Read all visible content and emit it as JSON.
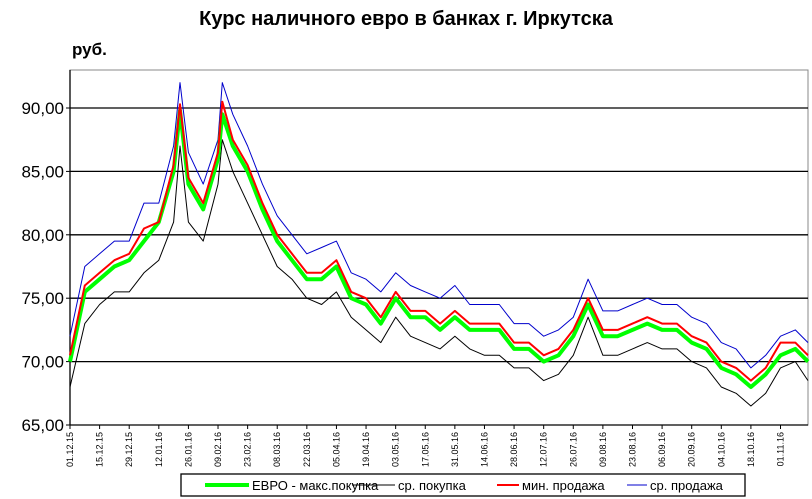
{
  "chart_data": {
    "type": "line",
    "title": "Курс наличного евро в банках г. Иркутска",
    "ylabel": "руб.",
    "ylim": [
      65,
      92.5
    ],
    "yticks": [
      "65,00",
      "70,00",
      "75,00",
      "80,00",
      "85,00",
      "90,00"
    ],
    "ytick_values": [
      65,
      70,
      75,
      80,
      85,
      90
    ],
    "xlim": [
      "01.12.15",
      "14.11.16"
    ],
    "xticks": [
      "01.12.15",
      "15.12.15",
      "29.12.15",
      "12.01.16",
      "26.01.16",
      "09.02.16",
      "23.02.16",
      "08.03.16",
      "22.03.16",
      "05.04.16",
      "19.04.16",
      "03.05.16",
      "17.05.16",
      "31.05.16",
      "14.06.16",
      "28.06.16",
      "12.07.16",
      "26.07.16",
      "09.08.16",
      "23.08.16",
      "06.09.16",
      "20.09.16",
      "04.10.16",
      "18.10.16",
      "01.11.16"
    ],
    "grid": "horizontal",
    "legend_position": "bottom",
    "x": [
      "01.12.15",
      "08.12.15",
      "15.12.15",
      "22.12.15",
      "29.12.15",
      "05.01.16",
      "12.01.16",
      "19.01.16",
      "22.01.16",
      "26.01.16",
      "02.02.16",
      "09.02.16",
      "11.02.16",
      "16.02.16",
      "23.02.16",
      "01.03.16",
      "08.03.16",
      "15.03.16",
      "22.03.16",
      "29.03.16",
      "05.04.16",
      "12.04.16",
      "19.04.16",
      "26.04.16",
      "03.05.16",
      "10.05.16",
      "17.05.16",
      "24.05.16",
      "31.05.16",
      "07.06.16",
      "14.06.16",
      "21.06.16",
      "28.06.16",
      "05.07.16",
      "12.07.16",
      "19.07.16",
      "26.07.16",
      "02.08.16",
      "09.08.16",
      "16.08.16",
      "23.08.16",
      "30.08.16",
      "06.09.16",
      "13.09.16",
      "20.09.16",
      "27.09.16",
      "04.10.16",
      "11.10.16",
      "18.10.16",
      "25.10.16",
      "01.11.16",
      "08.11.16",
      "14.11.16"
    ],
    "series": [
      {
        "name": "ЕВРО - макс.покупка",
        "color": "#00ff00",
        "values": [
          70.0,
          75.5,
          76.5,
          77.5,
          78.0,
          79.5,
          81.0,
          85.0,
          89.8,
          84.0,
          82.0,
          86.0,
          89.5,
          87.0,
          85.0,
          82.0,
          79.5,
          78.0,
          76.5,
          76.5,
          77.5,
          75.0,
          74.5,
          73.0,
          75.0,
          73.5,
          73.5,
          72.5,
          73.5,
          72.5,
          72.5,
          72.5,
          71.0,
          71.0,
          70.0,
          70.5,
          72.0,
          74.5,
          72.0,
          72.0,
          72.5,
          73.0,
          72.5,
          72.5,
          71.5,
          71.0,
          69.5,
          69.0,
          68.0,
          69.0,
          70.5,
          71.0,
          70.0
        ]
      },
      {
        "name": "ср. покупка",
        "color": "#000000",
        "values": [
          68.0,
          73.0,
          74.5,
          75.5,
          75.5,
          77.0,
          78.0,
          81.0,
          87.0,
          81.0,
          79.5,
          84.0,
          87.5,
          85.0,
          82.5,
          80.0,
          77.5,
          76.5,
          75.0,
          74.5,
          75.5,
          73.5,
          72.5,
          71.5,
          73.5,
          72.0,
          71.5,
          71.0,
          72.0,
          71.0,
          70.5,
          70.5,
          69.5,
          69.5,
          68.5,
          69.0,
          70.5,
          73.5,
          70.5,
          70.5,
          71.0,
          71.5,
          71.0,
          71.0,
          70.0,
          69.5,
          68.0,
          67.5,
          66.5,
          67.5,
          69.5,
          70.0,
          68.5
        ]
      },
      {
        "name": "мин. продажа",
        "color": "#ff0000",
        "values": [
          70.5,
          76.0,
          77.0,
          78.0,
          78.5,
          80.5,
          81.0,
          85.5,
          90.3,
          84.5,
          82.5,
          86.5,
          90.5,
          87.5,
          85.5,
          82.5,
          80.0,
          78.5,
          77.0,
          77.0,
          78.0,
          75.5,
          75.0,
          73.5,
          75.5,
          74.0,
          74.0,
          73.0,
          74.0,
          73.0,
          73.0,
          73.0,
          71.5,
          71.5,
          70.5,
          71.0,
          72.5,
          75.0,
          72.5,
          72.5,
          73.0,
          73.5,
          73.0,
          73.0,
          72.0,
          71.5,
          70.0,
          69.5,
          68.5,
          69.5,
          71.5,
          71.5,
          70.5
        ]
      },
      {
        "name": "ср. продажа",
        "color": "#0000cc",
        "values": [
          72.0,
          77.5,
          78.5,
          79.5,
          79.5,
          82.5,
          82.5,
          87.0,
          92.0,
          86.5,
          84.0,
          87.5,
          92.0,
          89.5,
          87.0,
          84.0,
          81.5,
          80.0,
          78.5,
          79.0,
          79.5,
          77.0,
          76.5,
          75.5,
          77.0,
          76.0,
          75.5,
          75.0,
          76.0,
          74.5,
          74.5,
          74.5,
          73.0,
          73.0,
          72.0,
          72.5,
          73.5,
          76.5,
          74.0,
          74.0,
          74.5,
          75.0,
          74.5,
          74.5,
          73.5,
          73.0,
          71.5,
          71.0,
          69.5,
          70.5,
          72.0,
          72.5,
          71.5
        ]
      }
    ]
  }
}
